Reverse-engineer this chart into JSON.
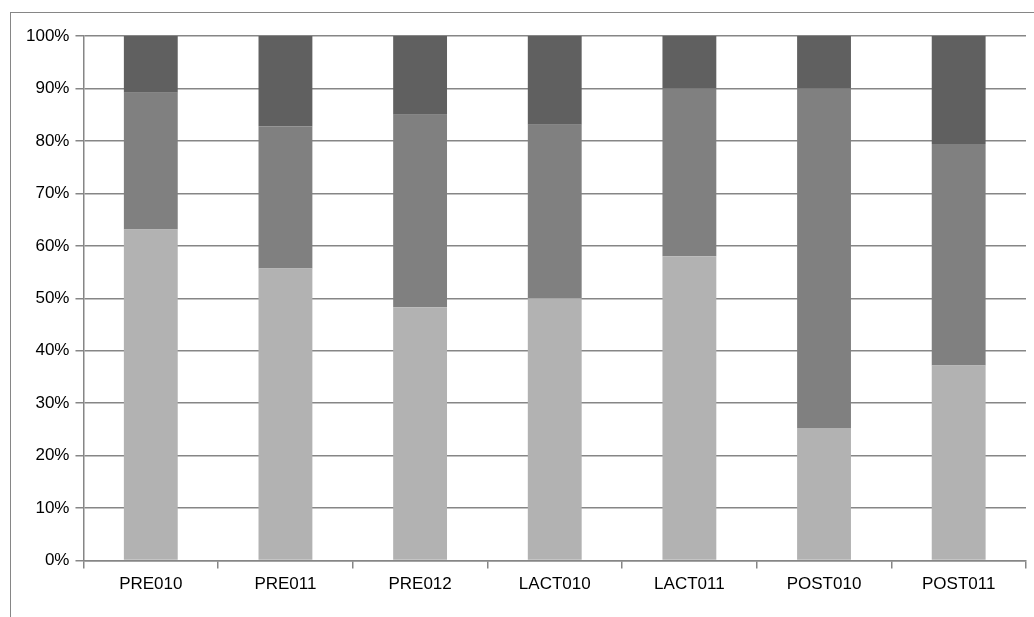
{
  "chart_data": {
    "type": "bar",
    "stacked": true,
    "categories": [
      "PRE010",
      "PRE011",
      "PRE012",
      "LACT010",
      "LACT011",
      "POST010",
      "POST011"
    ],
    "series": [
      {
        "color": "#b2b2b2",
        "values": [
          63.1,
          55.7,
          48.3,
          50,
          58,
          25.3,
          37.2
        ]
      },
      {
        "color": "#808080",
        "values": [
          26.1,
          27.1,
          36.7,
          33.1,
          32,
          64.7,
          42.2
        ]
      },
      {
        "color": "#606060",
        "values": [
          10.8,
          17.2,
          15,
          16.9,
          10,
          10,
          20.6
        ]
      }
    ],
    "ylim": [
      0,
      100
    ],
    "yticks": [
      {
        "value": 0,
        "label": "0%"
      },
      {
        "value": 10,
        "label": "10%"
      },
      {
        "value": 20,
        "label": "20%"
      },
      {
        "value": 30,
        "label": "30%"
      },
      {
        "value": 40,
        "label": "40%"
      },
      {
        "value": 50,
        "label": "50%"
      },
      {
        "value": 60,
        "label": "60%"
      },
      {
        "value": 70,
        "label": "70%"
      },
      {
        "value": 80,
        "label": "80%"
      },
      {
        "value": 90,
        "label": "90%"
      },
      {
        "value": 100,
        "label": "100%"
      }
    ],
    "grid": "y",
    "legend": false
  }
}
